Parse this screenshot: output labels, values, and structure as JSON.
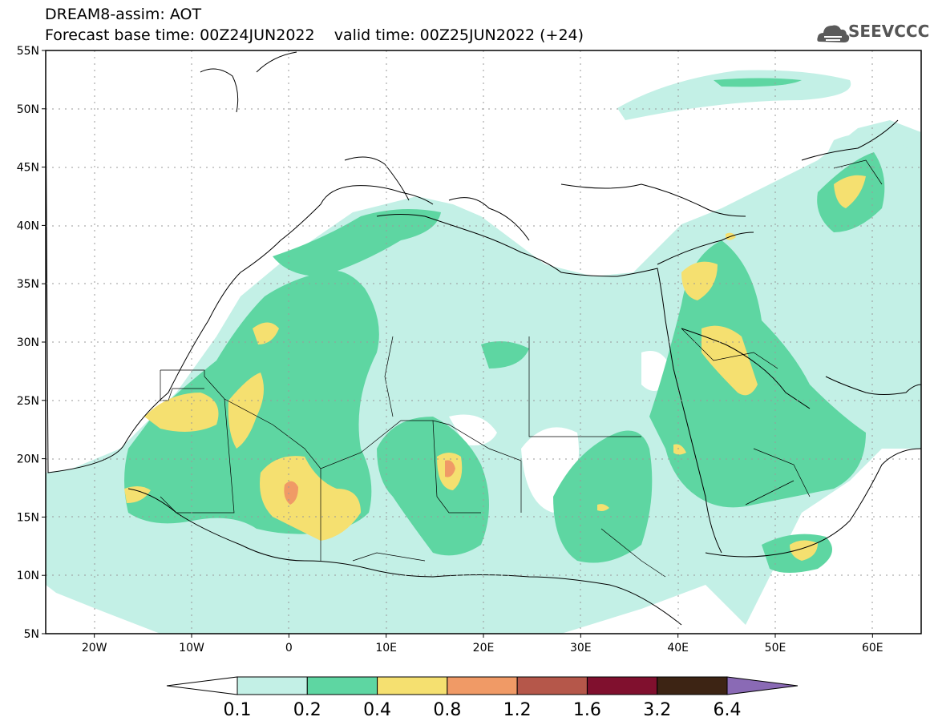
{
  "header": {
    "title_line1": "DREAM8-assim: AOT",
    "title_line2": "Forecast base time: 00Z24JUN2022    valid time: 00Z25JUN2022 (+24)",
    "logo_text": "SEEVCCC"
  },
  "map": {
    "lon_range": [
      -25,
      65
    ],
    "lat_range": [
      5,
      55
    ],
    "lat_ticks": [
      {
        "value": 55,
        "label": "55N"
      },
      {
        "value": 50,
        "label": "50N"
      },
      {
        "value": 45,
        "label": "45N"
      },
      {
        "value": 40,
        "label": "40N"
      },
      {
        "value": 35,
        "label": "35N"
      },
      {
        "value": 30,
        "label": "30N"
      },
      {
        "value": 25,
        "label": "25N"
      },
      {
        "value": 20,
        "label": "20N"
      },
      {
        "value": 15,
        "label": "15N"
      },
      {
        "value": 10,
        "label": "10N"
      },
      {
        "value": 5,
        "label": "5N"
      }
    ],
    "lon_ticks": [
      {
        "value": -20,
        "label": "20W"
      },
      {
        "value": -10,
        "label": "10W"
      },
      {
        "value": 0,
        "label": "0"
      },
      {
        "value": 10,
        "label": "10E"
      },
      {
        "value": 20,
        "label": "20E"
      },
      {
        "value": 30,
        "label": "30E"
      },
      {
        "value": 40,
        "label": "40E"
      },
      {
        "value": 50,
        "label": "50E"
      },
      {
        "value": 60,
        "label": "60E"
      }
    ]
  },
  "colorbar": {
    "levels": [
      "0.1",
      "0.2",
      "0.4",
      "0.8",
      "1.2",
      "1.6",
      "3.2",
      "6.4"
    ],
    "colors": [
      "#ffffff",
      "#c3f0e6",
      "#5ed6a2",
      "#f5e070",
      "#f09a66",
      "#b5574a",
      "#80102e",
      "#3d2414",
      "#8a6ab5"
    ]
  }
}
